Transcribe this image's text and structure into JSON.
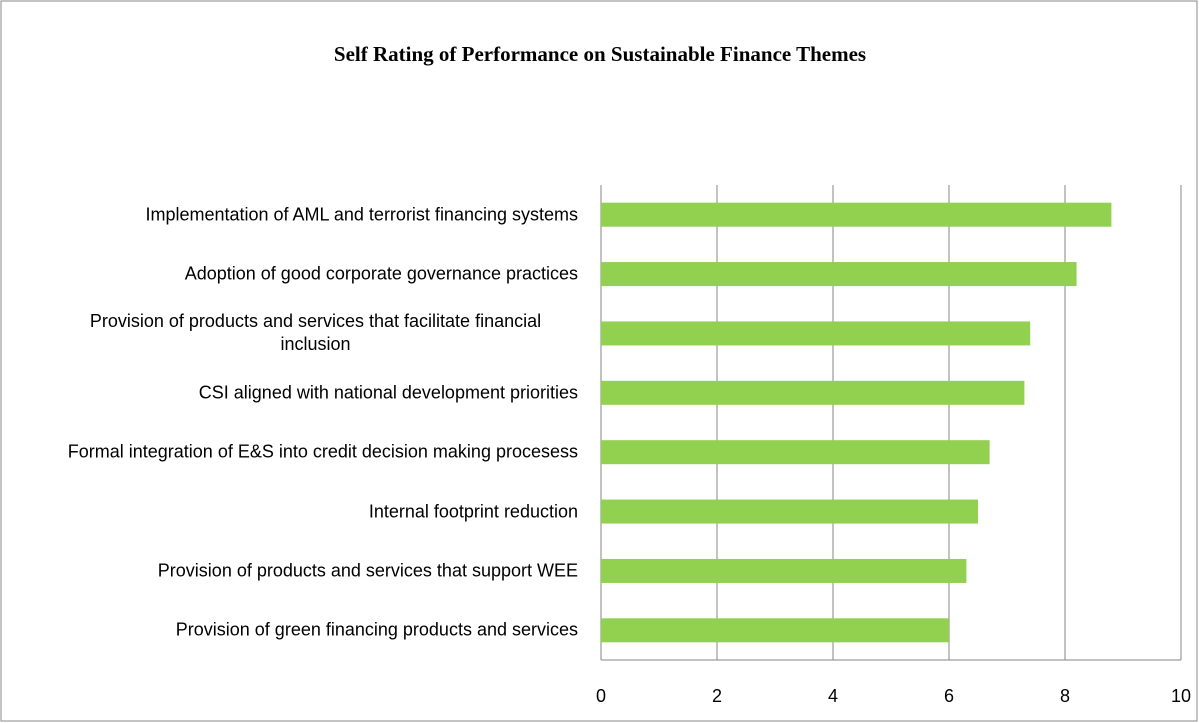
{
  "chart_data": {
    "type": "barh",
    "title": "Self Rating of Performance on Sustainable Finance Themes",
    "categories": [
      "Implementation of AML and terrorist financing systems",
      "Adoption of good corporate governance practices",
      "Provision of products and services that facilitate financial inclusion",
      "CSI aligned with national development priorities",
      "Formal integration of E&S into credit decision making procesess",
      "Internal footprint reduction",
      "Provision of products and services that support WEE",
      "Provision of green financing products and services"
    ],
    "values": [
      8.8,
      8.2,
      7.4,
      7.3,
      6.7,
      6.5,
      6.3,
      6.0
    ],
    "color": "#92d050",
    "xlim": [
      0,
      10
    ],
    "xticks": [
      0,
      2,
      4,
      6,
      8,
      10
    ],
    "grid": true
  }
}
